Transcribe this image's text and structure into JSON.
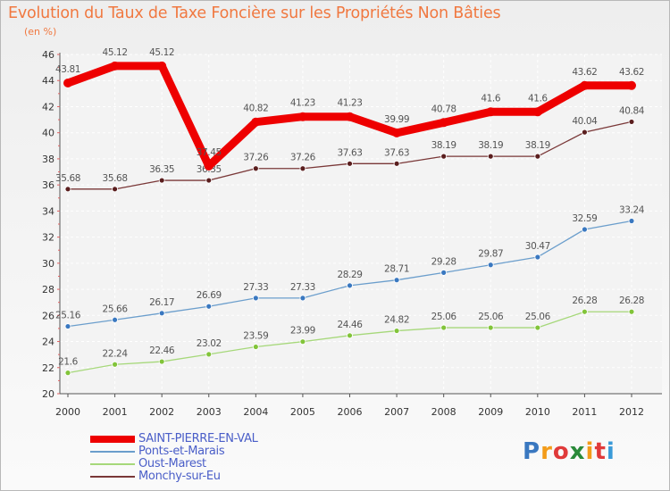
{
  "chart_data": {
    "type": "line",
    "title": "Evolution du Taux de Taxe Foncière sur les Propriétés Non Bâties",
    "ylabel": "(en %)",
    "xlabel": "",
    "ylim": [
      20,
      46
    ],
    "yticks": [
      20,
      22,
      24,
      26,
      28,
      30,
      32,
      34,
      36,
      38,
      40,
      42,
      44,
      46
    ],
    "categories": [
      "2000",
      "2001",
      "2002",
      "2003",
      "2004",
      "2005",
      "2006",
      "2007",
      "2008",
      "2009",
      "2010",
      "2011",
      "2012"
    ],
    "series": [
      {
        "name": "SAINT-PIERRE-EN-VAL",
        "color": "#ee0000",
        "marker": "#ee0000",
        "values": [
          43.81,
          45.12,
          45.12,
          37.45,
          40.82,
          41.23,
          41.23,
          39.99,
          40.78,
          41.6,
          41.6,
          43.62,
          43.62
        ]
      },
      {
        "name": "Ponts-et-Marais",
        "color": "#6b9ecc",
        "marker": "#3a78c0",
        "values": [
          25.16,
          25.66,
          26.17,
          26.69,
          27.33,
          27.33,
          28.29,
          28.71,
          29.28,
          29.87,
          30.47,
          32.59,
          33.24
        ]
      },
      {
        "name": "Oust-Marest",
        "color": "#a6d87a",
        "marker": "#82c43a",
        "values": [
          21.6,
          22.24,
          22.46,
          23.02,
          23.59,
          23.99,
          24.46,
          24.82,
          25.06,
          25.06,
          25.06,
          26.28,
          26.28
        ]
      },
      {
        "name": "Monchy-sur-Eu",
        "color": "#7a3838",
        "marker": "#5a1e1e",
        "values": [
          35.68,
          35.68,
          36.35,
          36.35,
          37.26,
          37.26,
          37.63,
          37.63,
          38.19,
          38.19,
          38.19,
          40.04,
          40.84
        ]
      }
    ],
    "legend_position": "bottom-left"
  },
  "logo": {
    "letters": [
      "P",
      "r",
      "o",
      "x",
      "i",
      "t",
      "i"
    ],
    "colors": [
      "#3a78c0",
      "#f39c1a",
      "#e03a3a",
      "#2a8a3a",
      "#f39c1a",
      "#e03a3a",
      "#3a9ad8"
    ]
  }
}
